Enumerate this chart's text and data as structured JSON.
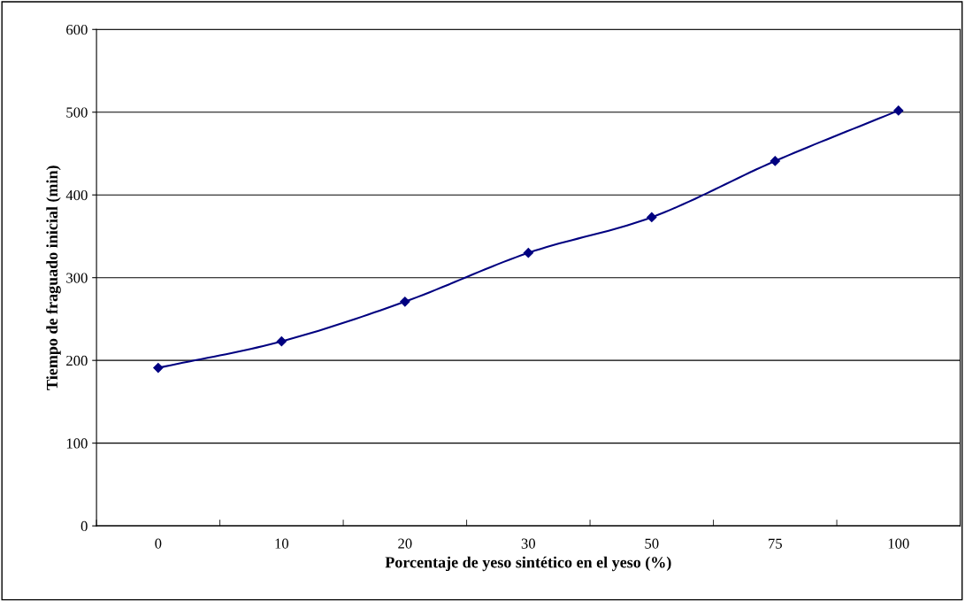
{
  "chart_data": {
    "type": "line",
    "xlabel": "Porcentaje de yeso sintético en el yeso (%)",
    "ylabel": "Tiempo de fraguado inicial (min)",
    "categories": [
      "0",
      "10",
      "20",
      "30",
      "50",
      "75",
      "100"
    ],
    "series": [
      {
        "color": "#000080",
        "values": [
          191,
          223,
          271,
          330,
          373,
          441,
          502
        ]
      }
    ],
    "ylim": [
      0,
      600
    ],
    "yticks": [
      0,
      100,
      200,
      300,
      400,
      500,
      600
    ],
    "grid": "y",
    "marker": "diamond",
    "line_style": "solid"
  }
}
